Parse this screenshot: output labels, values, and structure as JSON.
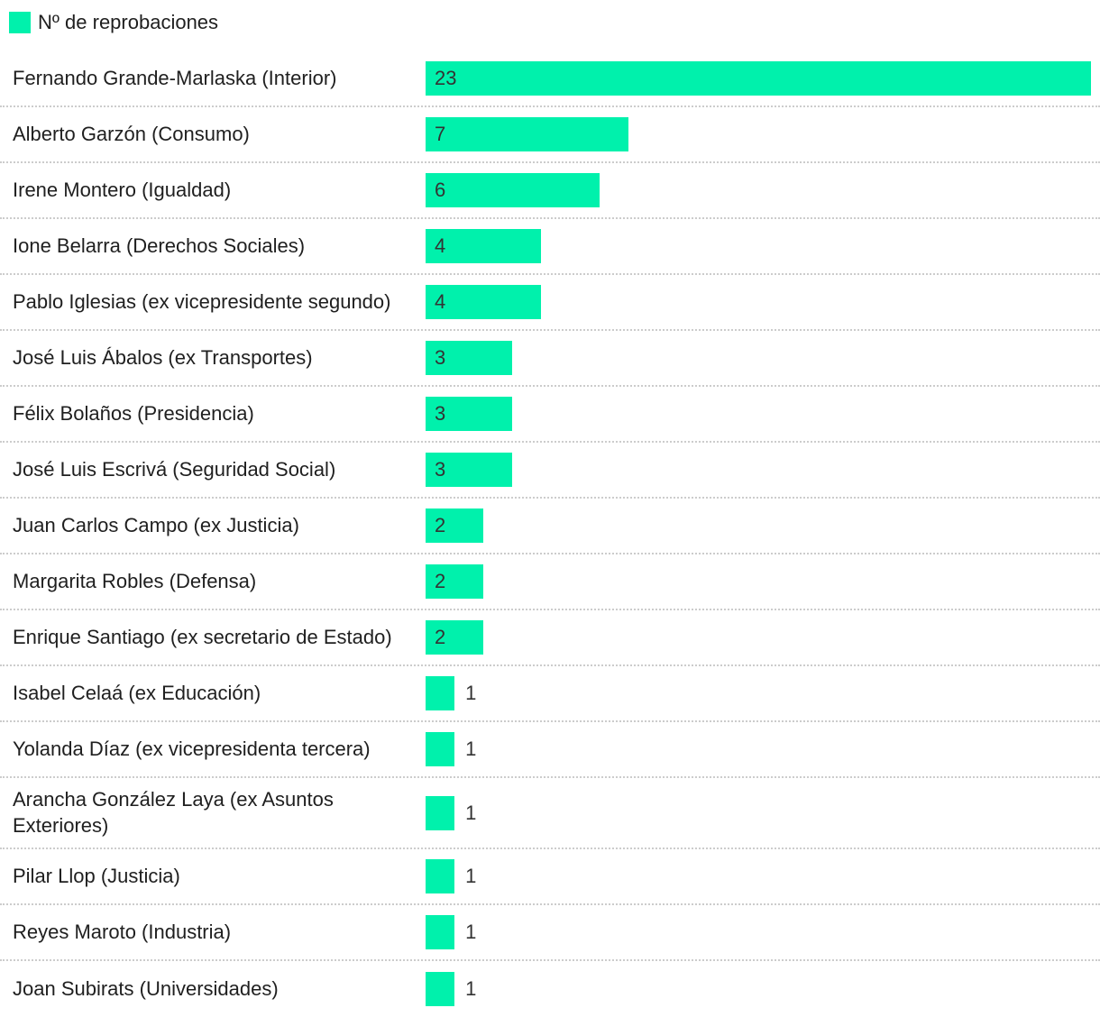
{
  "legend": {
    "label": "Nº de reprobaciones",
    "color": "#00f1ac"
  },
  "colors": {
    "bar": "#00f1ac",
    "label_text": "#1f1f1f",
    "value_text": "#333333",
    "separator": "#cccccc",
    "background": "#ffffff"
  },
  "chart_data": {
    "type": "bar",
    "orientation": "horizontal",
    "title": "Nº de reprobaciones",
    "legend_position": "top-left",
    "grid": false,
    "xlim": [
      0,
      23
    ],
    "inside_value_label_min": 2,
    "categories": [
      "Fernando Grande-Marlaska (Interior)",
      "Alberto Garzón (Consumo)",
      "Irene Montero (Igualdad)",
      "Ione Belarra (Derechos Sociales)",
      "Pablo Iglesias (ex vicepresidente segundo)",
      "José Luis Ábalos (ex Transportes)",
      "Félix Bolaños (Presidencia)",
      "José Luis Escrivá (Seguridad Social)",
      "Juan Carlos Campo (ex Justicia)",
      "Margarita Robles (Defensa)",
      "Enrique Santiago (ex secretario de Estado)",
      "Isabel Celaá (ex Educación)",
      "Yolanda Díaz (ex vicepresidenta tercera)",
      "Arancha González Laya (ex Asuntos Exteriores)",
      "Pilar Llop (Justicia)",
      "Reyes Maroto (Industria)",
      "Joan Subirats (Universidades)"
    ],
    "series": [
      {
        "name": "Nº de reprobaciones",
        "values": [
          23,
          7,
          6,
          4,
          4,
          3,
          3,
          3,
          2,
          2,
          2,
          1,
          1,
          1,
          1,
          1,
          1
        ]
      }
    ]
  }
}
